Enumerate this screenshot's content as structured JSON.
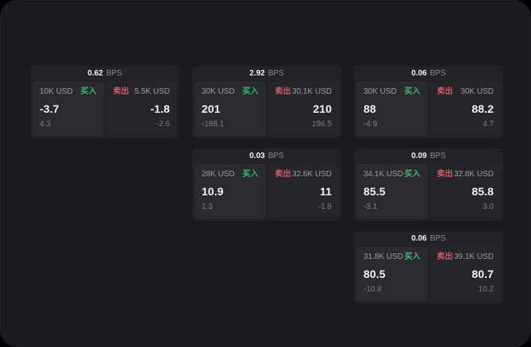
{
  "labels": {
    "bps": "BPS",
    "buy": "买入",
    "sell": "卖出"
  },
  "colors": {
    "page_background": "#000000",
    "surface": "#1b1b1d",
    "card": "#232326",
    "panel_buy": "#2b2b2e",
    "panel_sell": "#262629",
    "buy_green": "#3cb878",
    "sell_red": "#d05b6c",
    "text_primary": "#f4f4f5",
    "text_muted": "#9c9da1",
    "text_dim": "#8c8d91",
    "text_dim2": "#7d7e82"
  },
  "cards": [
    {
      "bps": "0.62",
      "buy": {
        "amount": "10K USD",
        "price": "-3.7",
        "delta": "4.3"
      },
      "sell": {
        "amount": "5.5K USD",
        "price": "-1.8",
        "delta": "-2.6"
      }
    },
    {
      "bps": "2.92",
      "buy": {
        "amount": "30K USD",
        "price": "201",
        "delta": "-188.1"
      },
      "sell": {
        "amount": "30.1K USD",
        "price": "210",
        "delta": "196.5"
      }
    },
    {
      "bps": "0.06",
      "buy": {
        "amount": "30K USD",
        "price": "88",
        "delta": "-4.9"
      },
      "sell": {
        "amount": "30K USD",
        "price": "88.2",
        "delta": "4.7"
      }
    },
    {
      "bps": "0.03",
      "buy": {
        "amount": "28K USD",
        "price": "10.9",
        "delta": "1.3"
      },
      "sell": {
        "amount": "32.6K USD",
        "price": "11",
        "delta": "-1.8"
      }
    },
    {
      "bps": "0.09",
      "buy": {
        "amount": "34.1K USD",
        "price": "85.5",
        "delta": "-3.1"
      },
      "sell": {
        "amount": "32.8K USD",
        "price": "85.8",
        "delta": "3.0"
      }
    },
    {
      "bps": "0.06",
      "buy": {
        "amount": "31.8K USD",
        "price": "80.5",
        "delta": "-10.8"
      },
      "sell": {
        "amount": "39.1K USD",
        "price": "80.7",
        "delta": "10.2"
      }
    }
  ]
}
